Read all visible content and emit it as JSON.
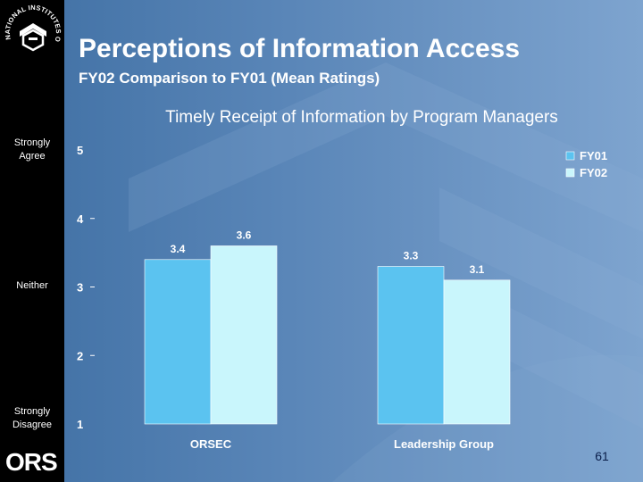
{
  "logo": {
    "arc_text": "NATIONAL INSTITUTES OF HEALTH",
    "org": "ORS"
  },
  "header": {
    "title": "Perceptions of Information Access",
    "subtitle": "FY02 Comparison to FY01 (Mean Ratings)"
  },
  "scale_labels": {
    "top": [
      "Strongly",
      "Agree"
    ],
    "middle": "Neither",
    "bottom": [
      "Strongly",
      "Disagree"
    ]
  },
  "colors": {
    "fy01": "#5bc3f0",
    "fy02": "#c9f6fc",
    "left_bar": "#000000"
  },
  "chart_data": {
    "type": "bar",
    "title": "Timely Receipt of Information by Program Managers",
    "categories": [
      "ORSEC",
      "Leadership Group"
    ],
    "series": [
      {
        "name": "FY01",
        "values": [
          3.4,
          3.3
        ],
        "labels": [
          "3.4",
          "3.3"
        ]
      },
      {
        "name": "FY02",
        "values": [
          3.6,
          3.1
        ],
        "labels": [
          "3.6",
          "3.1"
        ]
      }
    ],
    "ylim": [
      1,
      5
    ],
    "yticks": [
      "1",
      "2",
      "3",
      "4",
      "5"
    ],
    "xlabel": "",
    "ylabel": "",
    "legend": "top-right",
    "grid": false
  },
  "footer": {
    "page_number": "61"
  }
}
